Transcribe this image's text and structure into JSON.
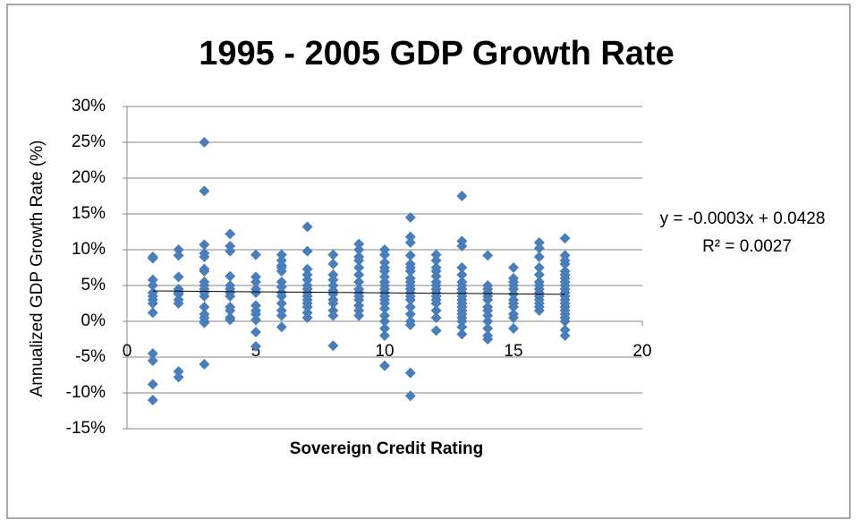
{
  "chart_data": {
    "type": "scatter",
    "title": "1995 - 2005 GDP Growth Rate",
    "x_label": "Sovereign Credit Rating",
    "y_label": "Annualized GDP  Growth Rate (%)",
    "color": "#4a7ebb",
    "xlim": [
      0,
      20
    ],
    "xticks": [
      0,
      5,
      10,
      15,
      20
    ],
    "ylim": [
      -15,
      30
    ],
    "yticks": [
      {
        "value": -15,
        "label": "-15%"
      },
      {
        "value": -10,
        "label": "-10%"
      },
      {
        "value": -5,
        "label": "-5%"
      },
      {
        "value": 0,
        "label": "0%"
      },
      {
        "value": 5,
        "label": "5%"
      },
      {
        "value": 10,
        "label": "10%"
      },
      {
        "value": 15,
        "label": "15%"
      },
      {
        "value": 20,
        "label": "20%"
      },
      {
        "value": 25,
        "label": "25%"
      },
      {
        "value": 30,
        "label": "30%"
      }
    ],
    "grid": true,
    "x": [
      1,
      1,
      1,
      1,
      1,
      1,
      1,
      1,
      1,
      1,
      1,
      1,
      1,
      2,
      2,
      2,
      2,
      2,
      2,
      2,
      2,
      2,
      2,
      3,
      3,
      3,
      3,
      3,
      3,
      3,
      3,
      3,
      3,
      3,
      3,
      3,
      3,
      3,
      3,
      3,
      3,
      4,
      4,
      4,
      4,
      4,
      4,
      4,
      4,
      4,
      4,
      4,
      4,
      5,
      5,
      5,
      5,
      5,
      5,
      5,
      5,
      5,
      5,
      5,
      6,
      6,
      6,
      6,
      6,
      6,
      6,
      6,
      6,
      6,
      6,
      6,
      6,
      7,
      7,
      7,
      7,
      7,
      7,
      7,
      7,
      7,
      7,
      7,
      7,
      7,
      7,
      8,
      8,
      8,
      8,
      8,
      8,
      8,
      8,
      8,
      8,
      8,
      8,
      9,
      9,
      9,
      9,
      9,
      9,
      9,
      9,
      9,
      9,
      9,
      9,
      9,
      9,
      10,
      10,
      10,
      10,
      10,
      10,
      10,
      10,
      10,
      10,
      10,
      10,
      10,
      10,
      10,
      10,
      10,
      10,
      10,
      11,
      11,
      11,
      11,
      11,
      11,
      11,
      11,
      11,
      11,
      11,
      11,
      11,
      11,
      11,
      11,
      11,
      11,
      11,
      11,
      12,
      12,
      12,
      12,
      12,
      12,
      12,
      12,
      12,
      12,
      12,
      12,
      12,
      12,
      12,
      13,
      13,
      13,
      13,
      13,
      13,
      13,
      13,
      13,
      13,
      13,
      13,
      13,
      13,
      13,
      13,
      13,
      13,
      13,
      14,
      14,
      14,
      14,
      14,
      14,
      14,
      14,
      14,
      14,
      14,
      14,
      14,
      15,
      15,
      15,
      15,
      15,
      15,
      15,
      15,
      15,
      15,
      15,
      15,
      16,
      16,
      16,
      16,
      16,
      16,
      16,
      16,
      16,
      16,
      16,
      16,
      16,
      16,
      17,
      17,
      17,
      17,
      17,
      17,
      17,
      17,
      17,
      17,
      17,
      17,
      17,
      17,
      17,
      17,
      17,
      17,
      17,
      17,
      17
    ],
    "values": [
      8.8,
      9,
      5.8,
      5,
      4,
      3.5,
      3,
      2.5,
      1.2,
      -4.5,
      -5.5,
      -8.8,
      -11,
      10,
      9.2,
      6.2,
      4.5,
      4,
      3.8,
      3,
      2.5,
      -7,
      -7.8,
      25,
      18.2,
      10.7,
      9.5,
      9,
      7.3,
      7,
      5.5,
      5,
      4.5,
      4,
      3.5,
      2,
      1,
      0.5,
      0,
      -0.2,
      -6,
      12.2,
      10.5,
      9.8,
      6.3,
      5,
      4.5,
      4,
      3.5,
      2,
      1.5,
      0.5,
      0.2,
      9.3,
      6.2,
      5.5,
      4.5,
      4,
      2.2,
      1.5,
      1,
      0.2,
      -1.5,
      -3.5,
      9.3,
      8.5,
      7.8,
      7.5,
      7,
      5.5,
      4.8,
      4,
      3.5,
      2.5,
      1.5,
      0.8,
      -0.8,
      13.2,
      9.8,
      7.3,
      6.5,
      5.8,
      5,
      4.5,
      4,
      3.5,
      3,
      2.5,
      2,
      1.2,
      0.5,
      9.3,
      8,
      6.5,
      5.8,
      5,
      4.3,
      3.8,
      3,
      2.5,
      1.5,
      0.8,
      -3.4,
      10.8,
      10,
      9,
      8.5,
      7.5,
      6.5,
      5.5,
      4.5,
      4,
      3.5,
      3,
      2.2,
      1.5,
      0.8,
      10,
      9.3,
      8.2,
      7.5,
      7,
      6.2,
      5.5,
      5,
      4.5,
      4,
      3.5,
      3,
      2.5,
      1.8,
      0.8,
      0,
      -1,
      -2,
      -6.2,
      14.5,
      11.8,
      11,
      9.2,
      8,
      7.5,
      7,
      6,
      5.5,
      5,
      4.5,
      4,
      3.5,
      3,
      2,
      1,
      0,
      -0.5,
      -7.2,
      -10.4,
      9.3,
      8.5,
      7.5,
      7,
      6.3,
      5.5,
      5,
      4.5,
      4,
      3.5,
      3,
      2.5,
      1.5,
      0.5,
      -1.3,
      17.5,
      11.2,
      10.5,
      7.5,
      6.5,
      5.5,
      5,
      4.5,
      4,
      3.5,
      3,
      2.5,
      2,
      1.5,
      1,
      0.5,
      0,
      -0.8,
      -1.8,
      9.2,
      5,
      4.5,
      4,
      3.5,
      3,
      2,
      1.5,
      0.8,
      0,
      -1,
      -2,
      -2.5,
      7.5,
      6,
      5.5,
      5,
      4.5,
      3.8,
      3,
      2.5,
      2,
      1,
      0.5,
      -1,
      11,
      10.2,
      9,
      7.5,
      6.5,
      5.5,
      5,
      4.5,
      4,
      3.5,
      3,
      2.5,
      2,
      1.5,
      11.6,
      9.2,
      8.5,
      8,
      7,
      6.5,
      6,
      5.5,
      5,
      4.5,
      4,
      3.5,
      3,
      2.5,
      2,
      1.5,
      1,
      0.5,
      0,
      -1.2,
      -2
    ],
    "trendline": {
      "x": [
        1,
        17
      ],
      "values": [
        4.25,
        3.77
      ],
      "color": "#000000"
    },
    "annotations": [
      "y = -0.0003x + 0.0428",
      "R² = 0.0027"
    ]
  }
}
